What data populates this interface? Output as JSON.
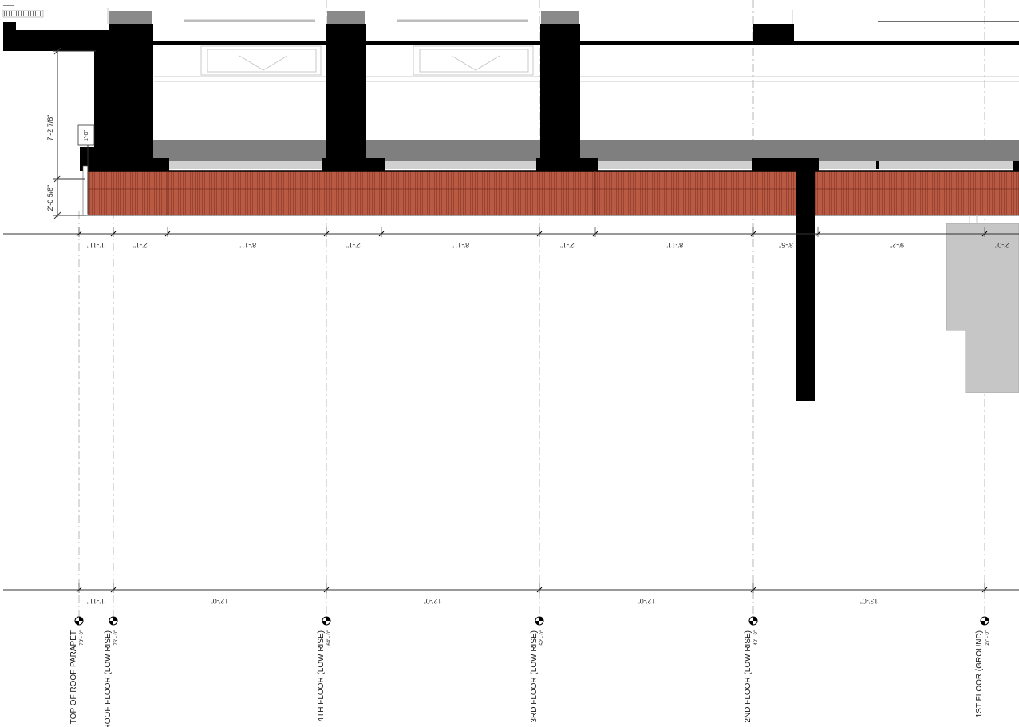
{
  "vertical_dims": [
    "7'-2 7/8\"",
    "2'-0 5/8\"",
    "1'-0\""
  ],
  "top_dims": [
    "1'-11\"",
    "2'-1\"",
    "8'-11\"",
    "2'-1\"",
    "8'-11\"",
    "2'-1\"",
    "8'-11\"",
    "3'-5\"",
    "9'-2\"",
    "2'-0\""
  ],
  "bottom_dims": [
    "1'-11\"",
    "12'-0\"",
    "12'-0\"",
    "12'-0\"",
    "13'-0\""
  ],
  "levels": [
    {
      "name": "TOP OF ROOF PARAPET",
      "elevation": "78' - 0\""
    },
    {
      "name": "ROOF FLOOR (LOW RISE)",
      "elevation": "76' - 0\""
    },
    {
      "name": "4TH FLOOR (LOW RISE)",
      "elevation": "64' - 0\""
    },
    {
      "name": "3RD FLOOR (LOW RISE)",
      "elevation": "52' - 0\""
    },
    {
      "name": "2ND FLOOR (LOW RISE)",
      "elevation": "40' - 0\""
    },
    {
      "name": "1ST FLOOR (GROUND)",
      "elevation": "27' - 0\""
    }
  ],
  "colors": {
    "brick": "#b95a44",
    "concrete": "#000000",
    "slab_gray": "#7f7f7f",
    "light_gray": "#c8c8c8"
  }
}
